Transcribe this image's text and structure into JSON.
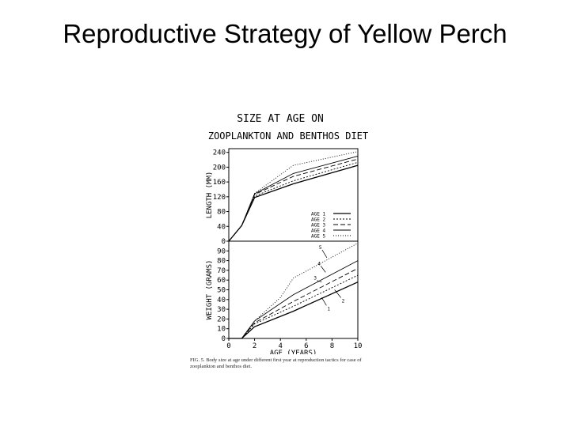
{
  "slide": {
    "title": "Reproductive Strategy of Yellow Perch"
  },
  "figure": {
    "title_line1": "SIZE AT AGE ON",
    "title_line2": "ZOOPLANKTON AND BENTHOS DIET",
    "caption": "FIG. 5. Body size at age under different first year at reproduction tactics for case of zooplankton and benthos diet."
  },
  "chart_data": [
    {
      "type": "line",
      "ylabel": "LENGTH (MM)",
      "xlim": [
        0,
        10
      ],
      "ylim": [
        0,
        250
      ],
      "yticks": [
        0,
        40,
        80,
        120,
        160,
        200,
        240
      ],
      "legend_position": "middle-right",
      "series": [
        {
          "name": "AGE 1",
          "x": [
            0,
            1,
            2,
            5,
            10
          ],
          "y": [
            0,
            42,
            118,
            155,
            205
          ]
        },
        {
          "name": "AGE 2",
          "x": [
            0,
            1,
            2,
            5,
            10
          ],
          "y": [
            0,
            42,
            122,
            163,
            213
          ]
        },
        {
          "name": "AGE 3",
          "x": [
            0,
            1,
            2,
            5,
            10
          ],
          "y": [
            0,
            42,
            126,
            175,
            222
          ]
        },
        {
          "name": "AGE 4",
          "x": [
            0,
            1,
            2,
            5,
            10
          ],
          "y": [
            0,
            42,
            128,
            183,
            230
          ]
        },
        {
          "name": "AGE 5",
          "x": [
            0,
            1,
            2,
            5,
            10
          ],
          "y": [
            0,
            42,
            129,
            205,
            242
          ]
        }
      ]
    },
    {
      "type": "line",
      "xlabel": "AGE (YEARS)",
      "ylabel": "WEIGHT (GRAMS)",
      "xlim": [
        0,
        10
      ],
      "ylim": [
        0,
        100
      ],
      "xticks": [
        0,
        2,
        4,
        6,
        8,
        10
      ],
      "yticks": [
        0,
        10,
        20,
        30,
        40,
        50,
        60,
        70,
        80,
        90
      ],
      "series": [
        {
          "label": "1",
          "x": [
            0,
            1,
            2,
            5,
            10
          ],
          "y": [
            0,
            0,
            12,
            28,
            58
          ]
        },
        {
          "label": "2",
          "x": [
            0,
            1,
            2,
            5,
            10
          ],
          "y": [
            0,
            0,
            15,
            33,
            65
          ]
        },
        {
          "label": "3",
          "x": [
            0,
            1,
            2,
            5,
            10
          ],
          "y": [
            0,
            0,
            16,
            38,
            72
          ]
        },
        {
          "label": "4",
          "x": [
            0,
            1,
            2,
            5,
            10
          ],
          "y": [
            0,
            0,
            18,
            45,
            80
          ]
        },
        {
          "label": "5",
          "x": [
            0,
            1,
            2,
            4,
            5,
            10
          ],
          "y": [
            0,
            0,
            18,
            42,
            62,
            98
          ]
        }
      ]
    }
  ]
}
